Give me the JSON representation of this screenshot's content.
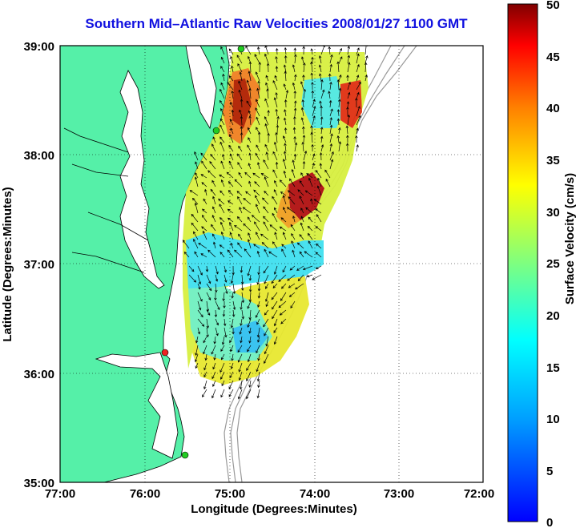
{
  "title": "Southern Mid–Atlantic Raw Velocities 2008/01/27 1100 GMT",
  "x_axis": {
    "label": "Longitude (Degrees:Minutes)",
    "ticks": [
      "77:00",
      "76:00",
      "75:00",
      "74:00",
      "73:00",
      "72:00"
    ]
  },
  "y_axis": {
    "label": "Latitude (Degrees:Minutes)",
    "ticks": [
      "39:00",
      "38:00",
      "37:00",
      "36:00",
      "35:00"
    ]
  },
  "colorbar": {
    "label": "Surface Velocity (cm/s)",
    "ticks": [
      "50",
      "45",
      "40",
      "35",
      "30",
      "25",
      "20",
      "15",
      "10",
      "5",
      "0"
    ],
    "range": [
      0,
      50
    ]
  },
  "colors": {
    "land": "#55f0a8",
    "water": "#ffffff",
    "title": "#1010e0",
    "station_green": "#22cc22",
    "station_red": "#ee2222"
  },
  "stations": [
    {
      "color": "green",
      "lon": 74.9,
      "lat": 39.0
    },
    {
      "color": "green",
      "lon": 75.08,
      "lat": 38.2
    },
    {
      "color": "red",
      "lon": 75.72,
      "lat": 36.18
    },
    {
      "color": "green",
      "lon": 75.48,
      "lat": 35.12
    }
  ]
}
